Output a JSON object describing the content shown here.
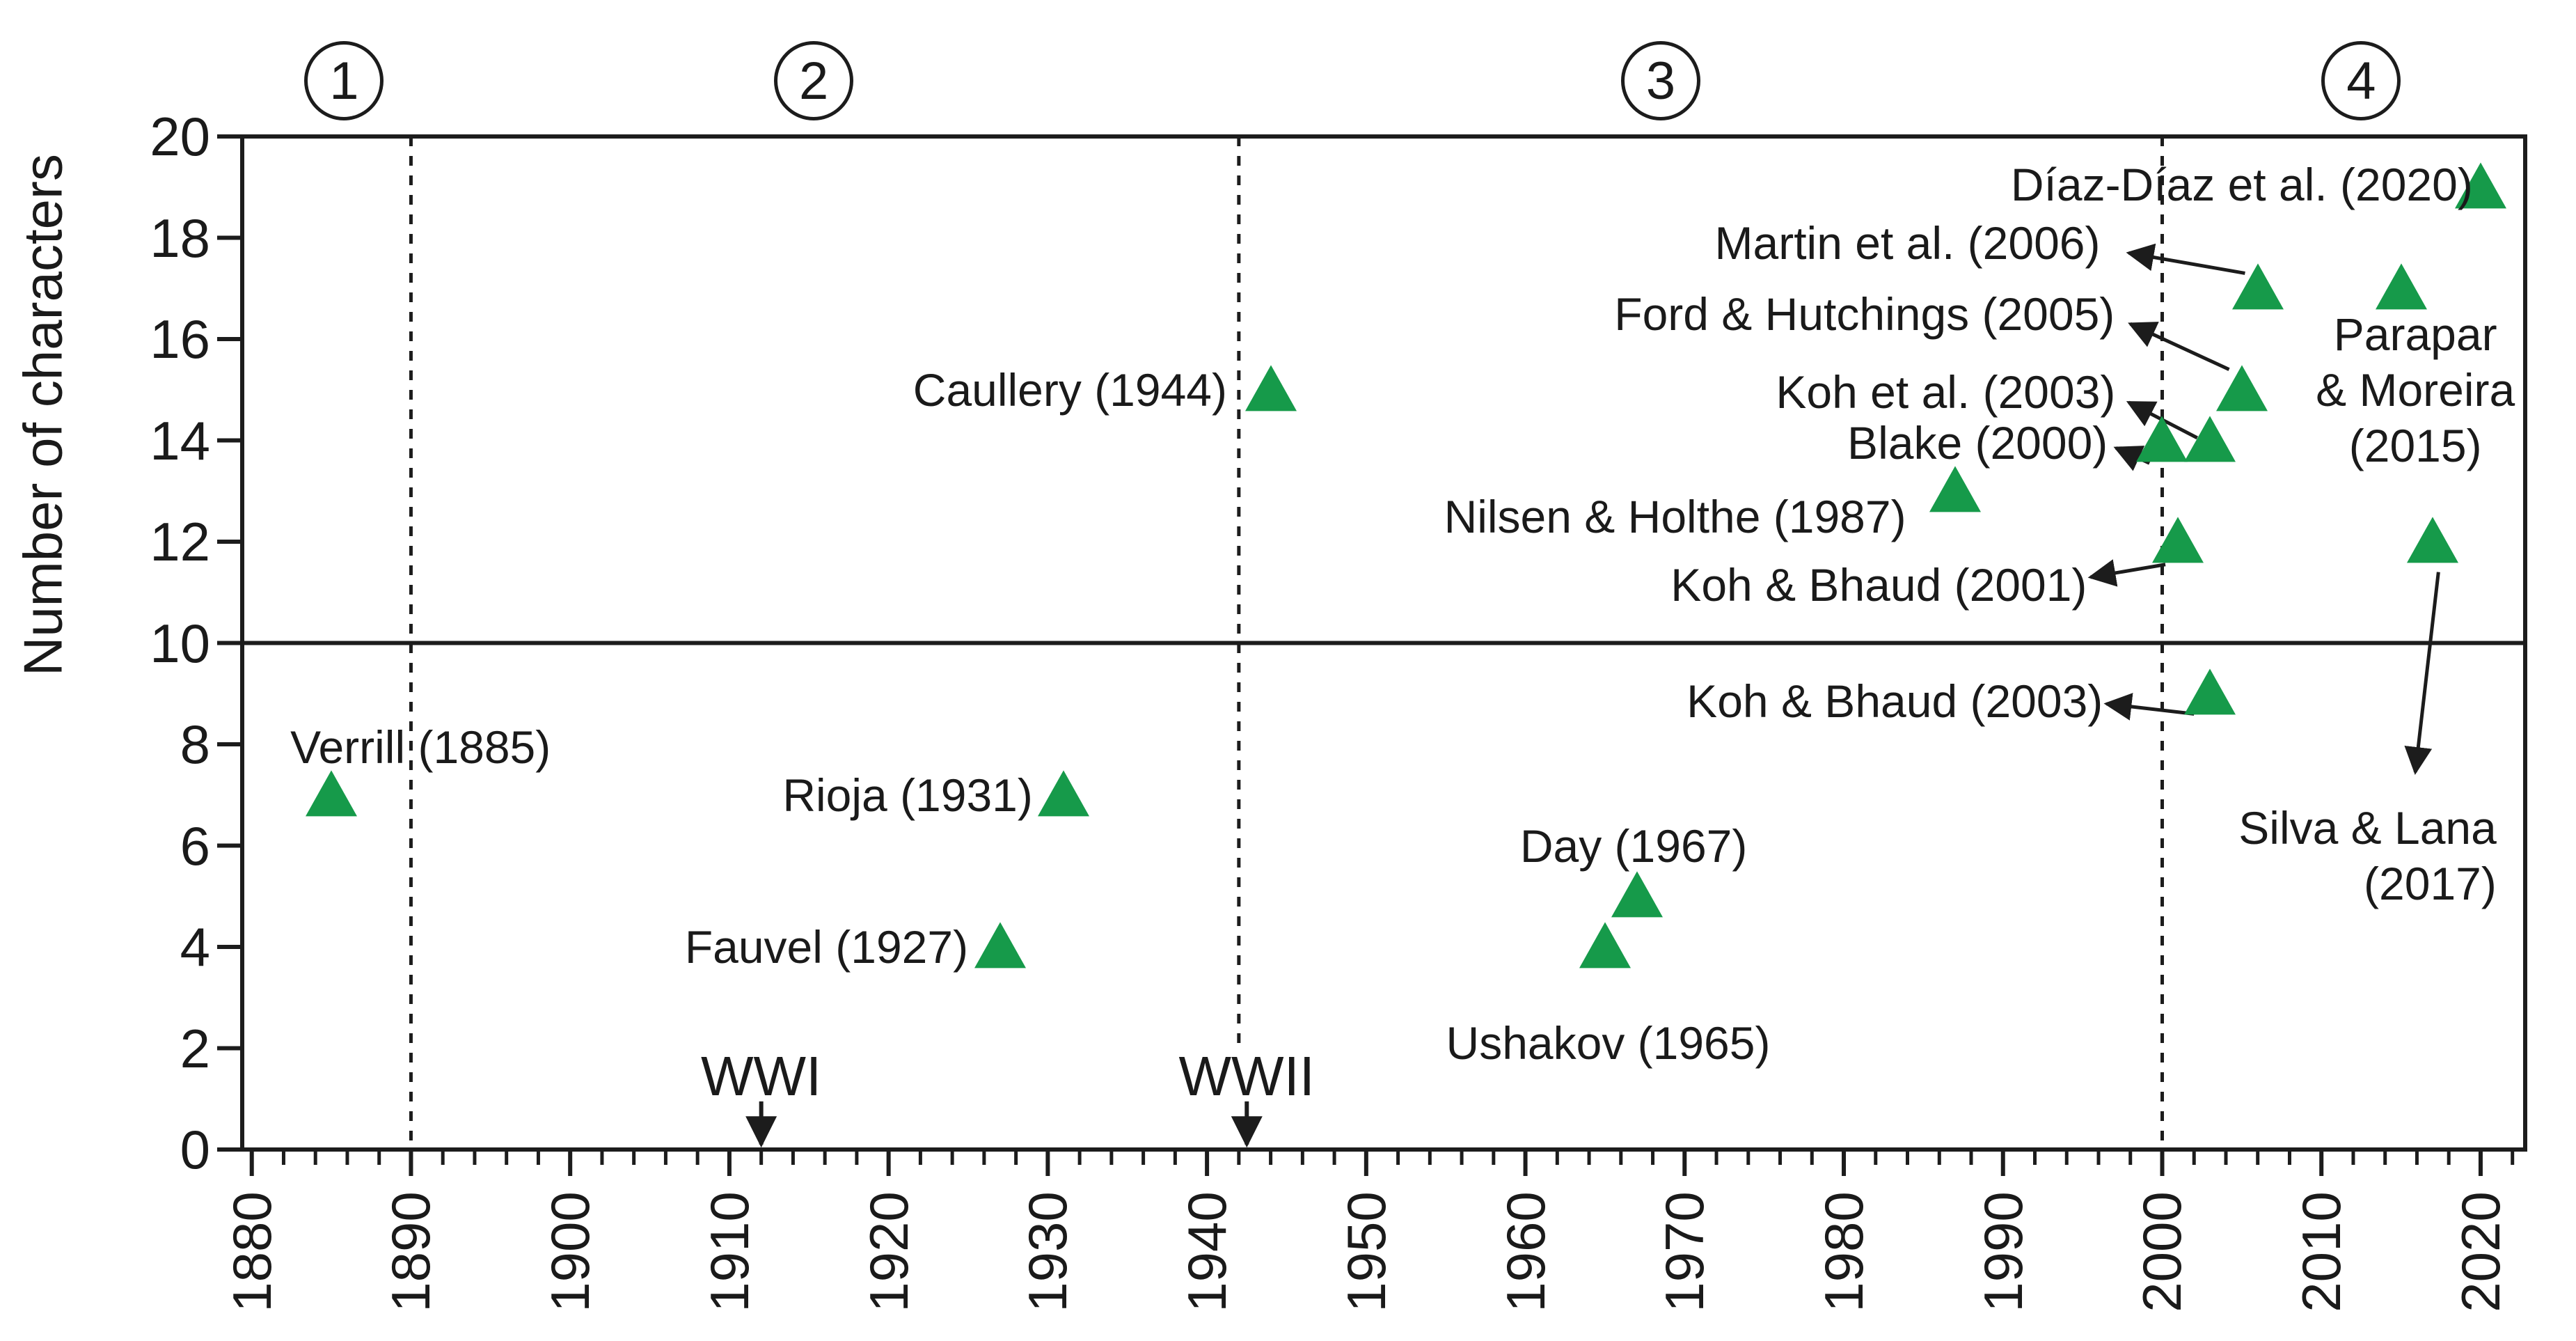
{
  "figure": {
    "y_axis_title": "Number of characters",
    "colors": {
      "marker_green": "#169a4a",
      "line_black": "#1c1c1c",
      "text_black": "#1a1a1a"
    }
  },
  "chart_data": {
    "type": "scatter",
    "title": "",
    "xlabel": "",
    "ylabel": "Number of characters",
    "xlim": [
      1879.4,
      2022.8
    ],
    "ylim": [
      0,
      20
    ],
    "x_ticks": [
      1880,
      1890,
      1900,
      1910,
      1920,
      1930,
      1940,
      1950,
      1960,
      1970,
      1980,
      1990,
      2000,
      2010,
      2020
    ],
    "x_minor_tick_step": 2,
    "y_ticks": [
      0,
      2,
      4,
      6,
      8,
      10,
      12,
      14,
      16,
      18,
      20
    ],
    "grid": false,
    "legend": null,
    "marker_shape": "triangle-up",
    "marker_color": "#169a4a",
    "reference_line_y": 10,
    "divider_lines_x": [
      {
        "x": 1890,
        "y_from": 0,
        "y_to": 20
      },
      {
        "x": 1942,
        "y_from": 2.1,
        "y_to": 20
      },
      {
        "x": 2000,
        "y_from": 0,
        "y_to": 20
      }
    ],
    "period_markers": [
      {
        "label": "1",
        "x": 1885.8,
        "cy": 116
      },
      {
        "label": "2",
        "x": 1915.3,
        "cy": 116
      },
      {
        "label": "3",
        "x": 1968.5,
        "cy": 116
      },
      {
        "label": "4",
        "x": 2012.5,
        "cy": 116
      }
    ],
    "points": [
      {
        "study": "Verrill (1885)",
        "year": 1885,
        "value": 7,
        "label": {
          "lines": [
            "Verrill (1885)"
          ],
          "x": 1890.6,
          "y": 7.95,
          "align": "center"
        }
      },
      {
        "study": "Fauvel (1927)",
        "year": 1927,
        "value": 4,
        "label": {
          "lines": [
            "Fauvel (1927)"
          ],
          "x": 1916.1,
          "y": 4.0,
          "align": "center"
        }
      },
      {
        "study": "Rioja (1931)",
        "year": 1931,
        "value": 7,
        "label": {
          "lines": [
            "Rioja (1931)"
          ],
          "x": 1921.2,
          "y": 7.0,
          "align": "center"
        }
      },
      {
        "study": "Caullery (1944)",
        "year": 1944,
        "value": 15,
        "label": {
          "lines": [
            "Caullery (1944)"
          ],
          "x": 1931.4,
          "y": 15.0,
          "align": "center"
        }
      },
      {
        "study": "Ushakov (1965)",
        "year": 1965,
        "value": 4,
        "label": {
          "lines": [
            "Ushakov (1965)"
          ],
          "x": 1965.2,
          "y": 2.1,
          "align": "center"
        }
      },
      {
        "study": "Day (1967)",
        "year": 1967,
        "value": 5,
        "label": {
          "lines": [
            "Day (1967)"
          ],
          "x": 1966.8,
          "y": 6.0,
          "align": "center"
        }
      },
      {
        "study": "Nilsen & Holthe (1987)",
        "year": 1987,
        "value": 13,
        "label": {
          "lines": [
            "Nilsen & Holthe (1987)"
          ],
          "x": 1969.4,
          "y": 12.5,
          "align": "center"
        }
      },
      {
        "study": "Blake (2000)",
        "year": 2000,
        "value": 14,
        "label": {
          "lines": [
            "Blake (2000)"
          ],
          "x": 1988.4,
          "y": 13.95,
          "align": "center"
        },
        "arrow": {
          "x1": 1999.2,
          "y1": 13.55,
          "x2": 1997.1,
          "y2": 13.85
        }
      },
      {
        "study": "Koh & Bhaud (2001)",
        "year": 2001,
        "value": 12,
        "label": {
          "lines": [
            "Koh & Bhaud (2001)"
          ],
          "x": 1982.2,
          "y": 11.15,
          "align": "center"
        },
        "arrow": {
          "x1": 2000.2,
          "y1": 11.55,
          "x2": 1995.5,
          "y2": 11.3
        }
      },
      {
        "study": "Koh et al. (2003)",
        "year": 2003,
        "value": 14,
        "label": {
          "lines": [
            "Koh et al. (2003)"
          ],
          "x": 1986.4,
          "y": 14.95,
          "align": "center"
        },
        "arrow": {
          "x1": 2002.2,
          "y1": 14.05,
          "x2": 1997.9,
          "y2": 14.75
        }
      },
      {
        "study": "Koh & Bhaud (2003)",
        "year": 2003,
        "value": 9,
        "label": {
          "lines": [
            "Koh & Bhaud (2003)"
          ],
          "x": 1983.2,
          "y": 8.85,
          "align": "center"
        },
        "arrow": {
          "x1": 2002.0,
          "y1": 8.6,
          "x2": 1996.5,
          "y2": 8.8
        }
      },
      {
        "study": "Ford & Hutchings (2005)",
        "year": 2005,
        "value": 15,
        "label": {
          "lines": [
            "Ford & Hutchings (2005)"
          ],
          "x": 1981.3,
          "y": 16.5,
          "align": "center"
        },
        "arrow": {
          "x1": 2004.2,
          "y1": 15.4,
          "x2": 1998.0,
          "y2": 16.3
        }
      },
      {
        "study": "Martin et al. (2006)",
        "year": 2006,
        "value": 17,
        "label": {
          "lines": [
            "Martin et al. (2006)"
          ],
          "x": 1984.0,
          "y": 17.9,
          "align": "center"
        },
        "arrow": {
          "x1": 2005.2,
          "y1": 17.3,
          "x2": 1997.9,
          "y2": 17.7
        }
      },
      {
        "study": "Parapar & Moreira (2015)",
        "year": 2015,
        "value": 17,
        "label": {
          "lines": [
            "Parapar",
            "& Moreira",
            "(2015)"
          ],
          "x": 2015.9,
          "y": 15.0,
          "align": "center"
        }
      },
      {
        "study": "Silva & Lana (2017)",
        "year": 2017,
        "value": 12,
        "label": {
          "lines": [
            "Silva & Lana",
            "(2017)"
          ],
          "x": 2012.9,
          "y": 5.8,
          "align": "right"
        },
        "arrow": {
          "x1": 2017.35,
          "y1": 11.4,
          "x2": 2015.9,
          "y2": 7.45
        }
      },
      {
        "study": "Díaz-Díaz et al. (2020)",
        "year": 2020,
        "value": 19,
        "label": {
          "lines": [
            "Díaz-Díaz et al. (2020)"
          ],
          "x": 2005.0,
          "y": 19.05,
          "align": "center"
        }
      }
    ],
    "war_annotations": [
      {
        "label": "WWI",
        "x": 1912.0,
        "text_y": 1.45,
        "arrow_from_y": 0.95,
        "arrow_to_y": 0.1
      },
      {
        "label": "WWII",
        "x": 1942.5,
        "text_y": 1.45,
        "arrow_from_y": 0.95,
        "arrow_to_y": 0.1
      }
    ]
  }
}
